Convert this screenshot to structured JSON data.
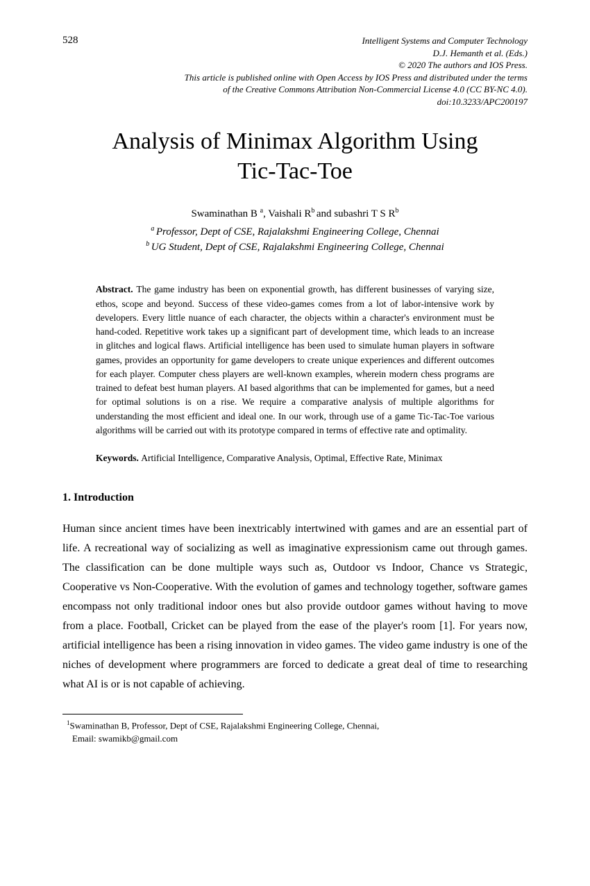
{
  "page_number": "528",
  "header": {
    "line1": "Intelligent Systems and Computer Technology",
    "line2": "D.J. Hemanth et al. (Eds.)",
    "line3": "© 2020 The authors and IOS Press.",
    "line4": "This article is published online with Open Access by IOS Press and distributed under the terms",
    "line5": "of the Creative Commons Attribution Non-Commercial License 4.0 (CC BY-NC 4.0).",
    "line6": "doi:10.3233/APC200197"
  },
  "title_line1": "Analysis of Minimax Algorithm Using",
  "title_line2": "Tic-Tac-Toe",
  "authors": {
    "a1_name": "Swaminathan B ",
    "a1_sup": "a",
    "sep1": ", ",
    "a2_name": "Vaishali R",
    "a2_sup": "b ",
    "sep2": "and ",
    "a3_name": "subashri T S R",
    "a3_sup": "b"
  },
  "affiliations": {
    "a_sup": "a ",
    "a_text": "Professor, Dept of CSE, Rajalakshmi Engineering College, Chennai",
    "b_sup": "b ",
    "b_text": "UG Student, Dept of CSE, Rajalakshmi Engineering College, Chennai"
  },
  "abstract": {
    "label": "Abstract. ",
    "text": "The game industry has been on exponential growth, has different businesses of varying size, ethos, scope and beyond. Success of these video-games comes from a lot of labor-intensive work by developers. Every little nuance of each character, the objects within a character's environment must be hand-coded. Repetitive work takes up a significant part of development time, which leads to an increase in glitches and logical flaws. Artificial intelligence has been used to simulate human players in software games, provides an opportunity for game developers to create unique experiences and different outcomes for each player. Computer chess players are well-known examples, wherein modern chess programs are trained to defeat best human players. AI based algorithms that can be implemented for games, but a need for optimal solutions is on a rise. We require a comparative analysis of multiple algorithms for understanding the most efficient and ideal one. In our work, through use of a game Tic-Tac-Toe various algorithms will be carried out with its prototype compared in terms of effective rate and optimality."
  },
  "keywords": {
    "label": "Keywords. ",
    "text": "Artificial Intelligence, Comparative Analysis, Optimal, Effective Rate, Minimax"
  },
  "section1": {
    "heading": "1. Introduction",
    "body": "Human since ancient times have been inextricably intertwined with games and are an essential part of life. A recreational way of socializing as well as imaginative expressionism came out through games. The classification can be done multiple ways such as, Outdoor vs Indoor, Chance vs Strategic, Cooperative vs Non-Cooperative. With the evolution of games and technology together, software games encompass not only traditional indoor ones but also provide outdoor games without having to move from a place. Football, Cricket can be played from the ease of the player's room [1]. For years now, artificial intelligence has been a rising innovation in video games. The video game industry is one of the niches of development where programmers are forced to dedicate a great deal of time to researching what AI is or is not capable of achieving."
  },
  "footnote": {
    "sup": "1",
    "line1": "Swaminathan B, Professor, Dept of CSE, Rajalakshmi Engineering College, Chennai,",
    "line2": "Email: swamikb@gmail.com"
  }
}
